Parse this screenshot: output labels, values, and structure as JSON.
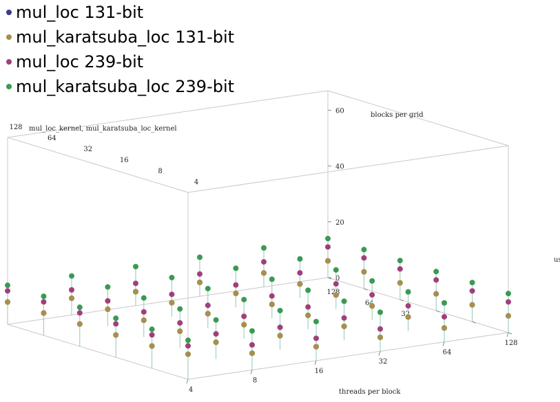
{
  "legend": [
    {
      "label": "mul_loc 131-bit",
      "color": "#3b3a8f"
    },
    {
      "label": "mul_karatsuba_loc 131-bit",
      "color": "#a8904a"
    },
    {
      "label": "mul_loc 239-bit",
      "color": "#a0407a"
    },
    {
      "label": "mul_karatsuba_loc 239-bit",
      "color": "#3a9a52"
    }
  ],
  "chart_data": {
    "type": "scatter3d",
    "title": "mul_loc_kernel,  mul_karatsuba_loc_kernel",
    "x_axis": {
      "label": "threads   per   block",
      "ticks": [
        "4",
        "8",
        "16",
        "32",
        "64",
        "128"
      ],
      "scale": "log2"
    },
    "y_axis": {
      "label": "blocks   per   grid",
      "ticks": [
        "4",
        "8",
        "16",
        "32",
        "64",
        "128"
      ],
      "scale": "log2"
    },
    "z_axis": {
      "label": "us",
      "ticks": [
        0,
        20,
        40,
        60
      ],
      "range": [
        0,
        67
      ]
    },
    "threads": [
      4,
      8,
      16,
      32,
      64,
      128
    ],
    "blocks": [
      4,
      8,
      16,
      32,
      64,
      128
    ],
    "series": [
      {
        "name": "mul_loc 131-bit",
        "color": "#3b3a8f",
        "values": [
          [
            9,
            8,
            8,
            8,
            8,
            8
          ],
          [
            6,
            6,
            6,
            6,
            6,
            6
          ],
          [
            5,
            5,
            5,
            5,
            5,
            5
          ],
          [
            5,
            5,
            5,
            5,
            5,
            5
          ],
          [
            5,
            5,
            5,
            5,
            5,
            5
          ],
          [
            6,
            6,
            6,
            6,
            6,
            6
          ]
        ]
      },
      {
        "name": "mul_karatsuba_loc 131-bit",
        "color": "#a8904a",
        "values": [
          [
            9,
            8,
            8,
            8,
            8,
            8
          ],
          [
            6,
            6,
            6,
            6,
            6,
            6
          ],
          [
            5,
            5,
            5,
            5,
            5,
            5
          ],
          [
            5,
            5,
            5,
            5,
            5,
            5
          ],
          [
            5,
            5,
            5,
            5,
            5,
            5
          ],
          [
            6,
            6,
            6,
            6,
            6,
            6
          ]
        ]
      },
      {
        "name": "mul_loc 239-bit",
        "color": "#a0407a",
        "values": [
          [
            12,
            12,
            12,
            12,
            12,
            12
          ],
          [
            9,
            9,
            9,
            9,
            9,
            9
          ],
          [
            8,
            8,
            8,
            8,
            8,
            8
          ],
          [
            8,
            8,
            8,
            8,
            8,
            8
          ],
          [
            9,
            9,
            9,
            9,
            9,
            9
          ],
          [
            11,
            11,
            11,
            11,
            11,
            11
          ]
        ]
      },
      {
        "name": "mul_karatsuba_loc 239-bit",
        "color": "#3a9a52",
        "values": [
          [
            14,
            14,
            14,
            14,
            14,
            14
          ],
          [
            14,
            14,
            14,
            14,
            14,
            14
          ],
          [
            14,
            14,
            14,
            14,
            14,
            14
          ],
          [
            14,
            14,
            14,
            14,
            14,
            14
          ],
          [
            14,
            14,
            14,
            14,
            14,
            14
          ],
          [
            14,
            14,
            14,
            14,
            14,
            14
          ]
        ]
      }
    ]
  }
}
